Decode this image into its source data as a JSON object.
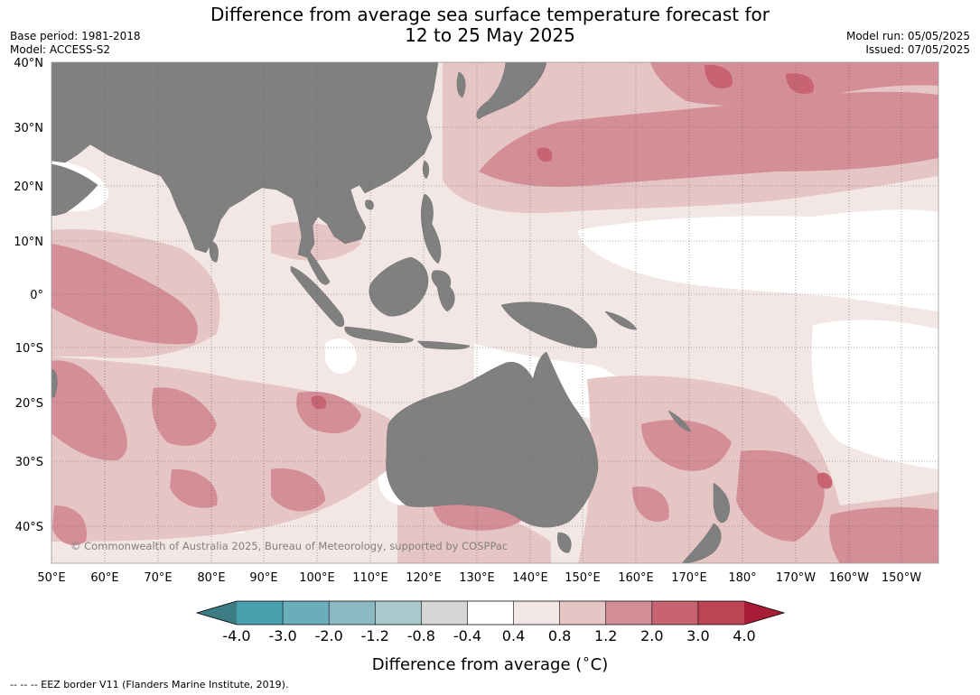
{
  "title": {
    "line1": "Difference from average sea surface temperature forecast for",
    "line2": "12 to 25 May 2025"
  },
  "meta_left": {
    "base_period": "Base period: 1981-2018",
    "model": "Model: ACCESS-S2"
  },
  "meta_right": {
    "model_run": "Model run: 05/05/2025",
    "issued": "Issued: 07/05/2025"
  },
  "map": {
    "lat_labels": [
      "40°N",
      "30°N",
      "20°N",
      "10°N",
      "0°",
      "10°S",
      "20°S",
      "30°S",
      "40°S"
    ],
    "lon_labels": [
      "50°E",
      "60°E",
      "70°E",
      "80°E",
      "90°E",
      "100°E",
      "110°E",
      "120°E",
      "130°E",
      "140°E",
      "150°E",
      "160°E",
      "170°E",
      "180°",
      "170°W",
      "160°W",
      "150°W"
    ],
    "copyright": "© Commonwealth of Australia 2025, Bureau of Meteorology, supported by COSPPac",
    "land_color": "#808080",
    "anomaly_colors": {
      "0.4_0.8": "#f3e7e6",
      "0.8_1.2": "#e6c6c4",
      "1.2_2.0": "#d48e98",
      "2.0_3.0": "#c86472",
      "neutral": "#ffffff"
    }
  },
  "colorbar": {
    "ticks": [
      "-4.0",
      "-3.0",
      "-2.0",
      "-1.2",
      "-0.8",
      "-0.4",
      "0.4",
      "0.8",
      "1.2",
      "2.0",
      "3.0",
      "4.0"
    ],
    "colors": [
      "#4a9fae",
      "#6aaebb",
      "#8ab9c4",
      "#a9c8cc",
      "#d6d6d6",
      "#ffffff",
      "#f3e7e6",
      "#e6c6c4",
      "#d48e98",
      "#c86472",
      "#bc4455"
    ],
    "extend_low_color": "#3c7c84",
    "extend_high_color": "#a81c36",
    "title": "Difference from average (",
    "unit": "C)"
  },
  "footer": "-- -- -- EEZ border V11 (Flanders Marine Institute, 2019)."
}
